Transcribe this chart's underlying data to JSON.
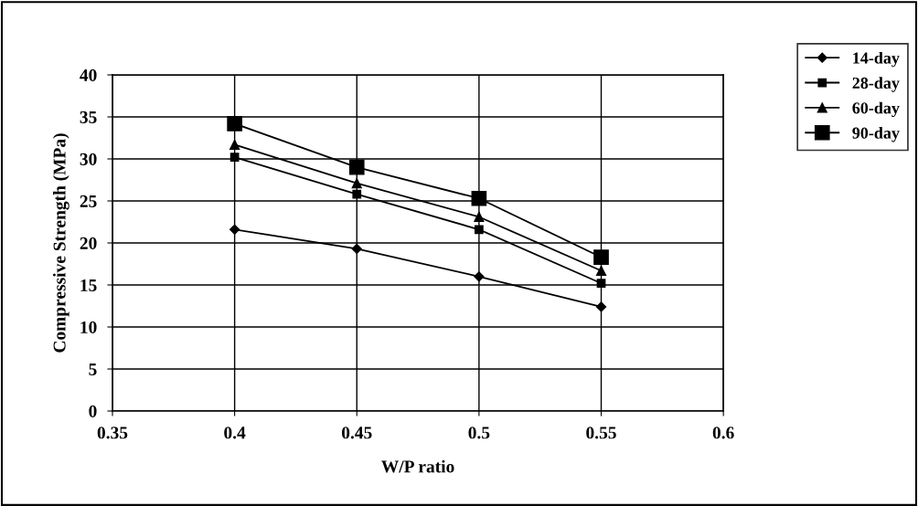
{
  "chart_data": {
    "type": "line",
    "xlabel": "W/P ratio",
    "ylabel": "Compressive Strength (MPa)",
    "xlim": [
      0.35,
      0.6
    ],
    "xticks": [
      0.35,
      0.4,
      0.45,
      0.5,
      0.55,
      0.6
    ],
    "ylim": [
      0,
      40
    ],
    "yticks": [
      0,
      5,
      10,
      15,
      20,
      25,
      30,
      35,
      40
    ],
    "grid": true,
    "legend": "top right",
    "line_style": "solid",
    "x": [
      0.4,
      0.45,
      0.5,
      0.55
    ],
    "series": [
      {
        "name": "14-day",
        "color": "#000000",
        "marker": "diamond",
        "values": [
          21.6,
          19.3,
          16.0,
          12.4
        ]
      },
      {
        "name": "28-day",
        "color": "#000000",
        "marker": "square",
        "values": [
          30.2,
          25.8,
          21.6,
          15.2
        ]
      },
      {
        "name": "60-day",
        "color": "#000000",
        "marker": "triangle",
        "values": [
          31.7,
          27.1,
          23.1,
          16.7
        ]
      },
      {
        "name": "90-day",
        "color": "#000000",
        "marker": "square",
        "values": [
          34.2,
          29.0,
          25.3,
          18.3
        ]
      }
    ]
  }
}
